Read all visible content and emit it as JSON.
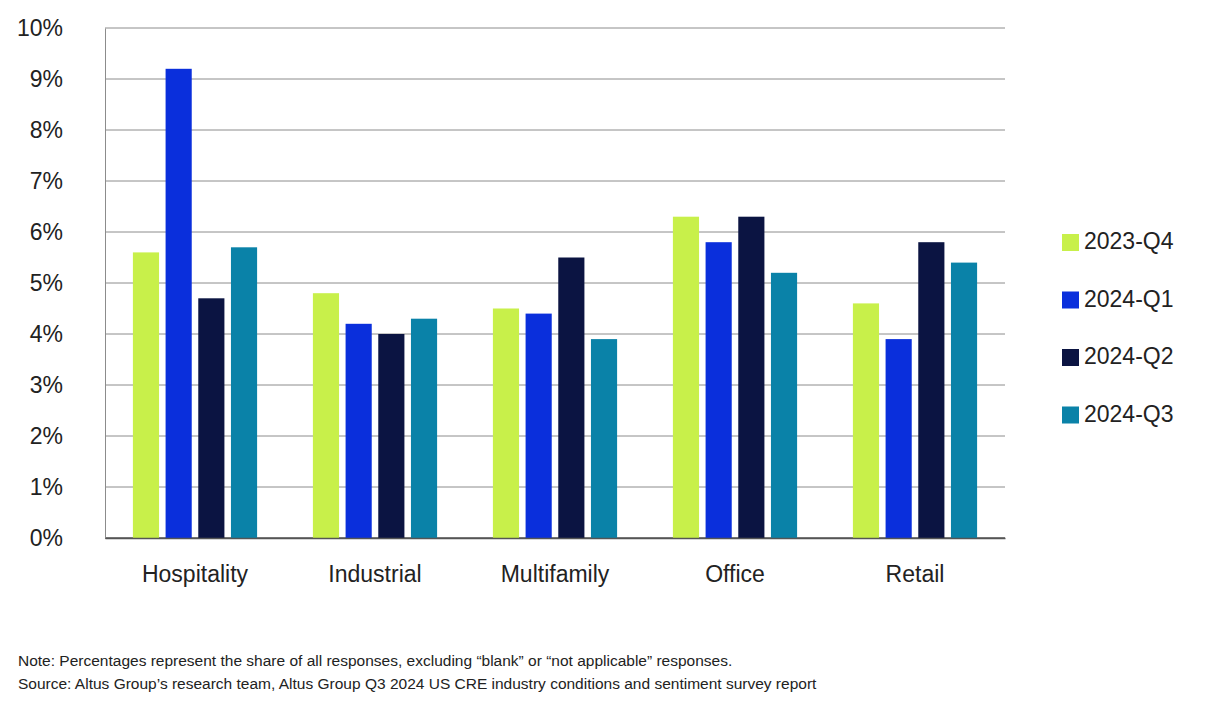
{
  "chart_data": {
    "type": "bar",
    "categories": [
      "Hospitality",
      "Industrial",
      "Multifamily",
      "Office",
      "Retail"
    ],
    "series": [
      {
        "name": "2023-Q4",
        "color": "#c8f04a",
        "values": [
          5.6,
          4.8,
          4.5,
          6.3,
          4.6
        ]
      },
      {
        "name": "2024-Q1",
        "color": "#0a2fdc",
        "values": [
          9.2,
          4.2,
          4.4,
          5.8,
          3.9
        ]
      },
      {
        "name": "2024-Q2",
        "color": "#0b1442",
        "values": [
          4.7,
          4.0,
          5.5,
          6.3,
          5.8
        ]
      },
      {
        "name": "2024-Q3",
        "color": "#0a82a8",
        "values": [
          5.7,
          4.3,
          3.9,
          5.2,
          5.4
        ]
      }
    ],
    "ylim": [
      0,
      10
    ],
    "yticks": [
      {
        "value": 0,
        "label": "0%"
      },
      {
        "value": 1,
        "label": "1%"
      },
      {
        "value": 2,
        "label": "2%"
      },
      {
        "value": 3,
        "label": "3%"
      },
      {
        "value": 4,
        "label": "4%"
      },
      {
        "value": 5,
        "label": "5%"
      },
      {
        "value": 6,
        "label": "6%"
      },
      {
        "value": 7,
        "label": "7%"
      },
      {
        "value": 8,
        "label": "8%"
      },
      {
        "value": 9,
        "label": "9%"
      },
      {
        "value": 10,
        "label": "10%"
      }
    ],
    "grid": true,
    "legend": "right",
    "notes": [
      "Note: Percentages represent the share of all responses, excluding “blank” or “not applicable” responses.",
      "Source: Altus Group’s research team, Altus Group Q3 2024 US CRE industry conditions and sentiment survey report"
    ]
  }
}
